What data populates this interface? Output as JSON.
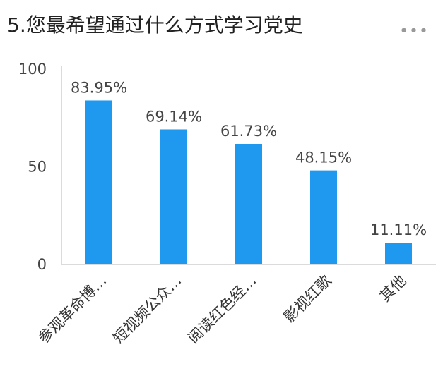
{
  "header": {
    "title": "5.您最希望通过什么方式学习党史",
    "more_icon": "more-horizontal-icon",
    "more_text": "•••"
  },
  "chart_data": {
    "type": "bar",
    "title": "5.您最希望通过什么方式学习党史",
    "categories": [
      "参观革命博…",
      "短视频公众…",
      "阅读红色经…",
      "影视红歌",
      "其他"
    ],
    "values": [
      83.95,
      69.14,
      61.73,
      48.15,
      11.11
    ],
    "value_labels": [
      "83.95%",
      "69.14%",
      "61.73%",
      "48.15%",
      "11.11%"
    ],
    "y_ticks": [
      0,
      50,
      100
    ],
    "ylim": [
      0,
      100
    ],
    "xlabel": "",
    "ylabel": "",
    "grid": false,
    "bar_color": "#1f98f0",
    "axis_color": "#cfcfcf"
  }
}
